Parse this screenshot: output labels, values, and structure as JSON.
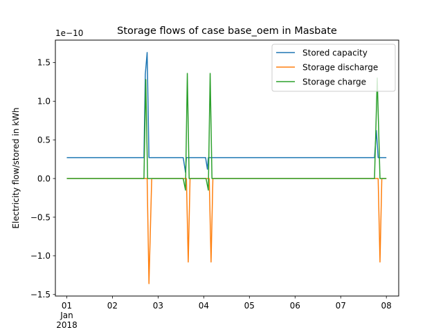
{
  "chart_data": {
    "type": "line",
    "title": "Storage flows of case base_oem in Masbate",
    "ylabel": "Electricity flow/stored in kWh",
    "xlabel": "",
    "y_offset_label": "1e−10",
    "xlim": [
      -0.25,
      7.27
    ],
    "ylim": [
      -1.52,
      1.79
    ],
    "yticks": [
      {
        "v": 1.5,
        "label": "1.5"
      },
      {
        "v": 1.0,
        "label": "1.0"
      },
      {
        "v": 0.5,
        "label": "0.5"
      },
      {
        "v": 0.0,
        "label": "0.0"
      },
      {
        "v": -0.5,
        "label": "−0.5"
      },
      {
        "v": -1.0,
        "label": "−1.0"
      },
      {
        "v": -1.5,
        "label": "−1.5"
      }
    ],
    "xticks": [
      {
        "v": 0,
        "lines": [
          "01",
          "Jan",
          "2018"
        ]
      },
      {
        "v": 1,
        "lines": [
          "02"
        ]
      },
      {
        "v": 2,
        "lines": [
          "03"
        ]
      },
      {
        "v": 3,
        "lines": [
          "04"
        ]
      },
      {
        "v": 4,
        "lines": [
          "05"
        ]
      },
      {
        "v": 5,
        "lines": [
          "06"
        ]
      },
      {
        "v": 6,
        "lines": [
          "07"
        ]
      },
      {
        "v": 7,
        "lines": [
          "08"
        ]
      }
    ],
    "legend_position": "top-right",
    "grid": false,
    "series": [
      {
        "name": "Stored capacity",
        "color": "#1f77b4",
        "points": [
          [
            0,
            0.27
          ],
          [
            1.65,
            0.27
          ],
          [
            1.69,
            0.27
          ],
          [
            1.72,
            1.35
          ],
          [
            1.76,
            1.63
          ],
          [
            1.8,
            0.27
          ],
          [
            2.5,
            0.27
          ],
          [
            2.55,
            0.27
          ],
          [
            2.6,
            0.08
          ],
          [
            2.62,
            0.27
          ],
          [
            3.0,
            0.27
          ],
          [
            3.04,
            0.27
          ],
          [
            3.08,
            0.12
          ],
          [
            3.1,
            0.27
          ],
          [
            6.7,
            0.27
          ],
          [
            6.74,
            0.27
          ],
          [
            6.78,
            0.62
          ],
          [
            6.82,
            0.27
          ],
          [
            7.0,
            0.27
          ]
        ]
      },
      {
        "name": "Storage discharge",
        "color": "#ff7f0e",
        "points": [
          [
            0,
            0.0
          ],
          [
            1.65,
            0.0
          ],
          [
            1.72,
            0.0
          ],
          [
            1.76,
            0.0
          ],
          [
            1.8,
            -1.36
          ],
          [
            1.86,
            0.0
          ],
          [
            2.58,
            0.0
          ],
          [
            2.62,
            0.0
          ],
          [
            2.66,
            -1.08
          ],
          [
            2.7,
            0.0
          ],
          [
            3.08,
            0.0
          ],
          [
            3.12,
            0.0
          ],
          [
            3.16,
            -1.08
          ],
          [
            3.2,
            0.0
          ],
          [
            6.78,
            0.0
          ],
          [
            6.82,
            0.0
          ],
          [
            6.86,
            -1.08
          ],
          [
            6.9,
            0.0
          ],
          [
            7.0,
            0.0
          ]
        ]
      },
      {
        "name": "Storage charge",
        "color": "#2ca02c",
        "points": [
          [
            0,
            0.0
          ],
          [
            1.65,
            0.0
          ],
          [
            1.69,
            0.0
          ],
          [
            1.73,
            1.28
          ],
          [
            1.77,
            0.0
          ],
          [
            2.5,
            0.0
          ],
          [
            2.55,
            0.0
          ],
          [
            2.6,
            -0.15
          ],
          [
            2.64,
            1.36
          ],
          [
            2.68,
            0.0
          ],
          [
            3.0,
            0.0
          ],
          [
            3.05,
            0.0
          ],
          [
            3.1,
            -0.15
          ],
          [
            3.14,
            1.36
          ],
          [
            3.18,
            0.0
          ],
          [
            6.7,
            0.0
          ],
          [
            6.74,
            0.0
          ],
          [
            6.8,
            1.3
          ],
          [
            6.86,
            0.0
          ],
          [
            7.0,
            0.0
          ]
        ]
      }
    ]
  }
}
